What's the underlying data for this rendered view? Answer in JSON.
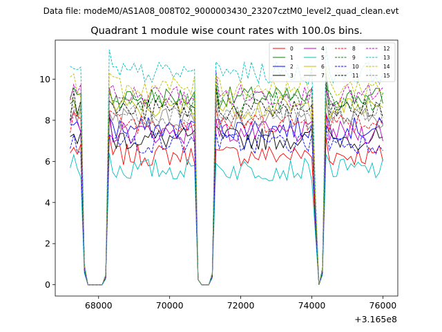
{
  "chart_data": {
    "type": "line",
    "suptitle": "Data file: modeM0/AS1A08_008T02_9000003430_23207cztM0_level2_quad_clean.evt",
    "title": "Quadrant 1 module wise count rates with 100.0s bins.",
    "xlabel": "",
    "ylabel": "",
    "x_offset_label": "+3.165e8",
    "xlim": [
      66780,
      76420
    ],
    "ylim": [
      -0.55,
      11.9
    ],
    "x_ticks": [
      68000,
      70000,
      72000,
      74000,
      76000
    ],
    "x_tick_labels": [
      "68000",
      "70000",
      "72000",
      "74000",
      "76000"
    ],
    "y_ticks": [
      0,
      2,
      4,
      6,
      8,
      10
    ],
    "y_tick_labels": [
      "0",
      "2",
      "4",
      "6",
      "8",
      "10"
    ],
    "x_start": 67200,
    "x_step": 100,
    "gap_value": 0.0,
    "segment_boundaries": [
      [
        67200,
        67500
      ],
      [
        68300,
        70700
      ],
      [
        71300,
        74000
      ],
      [
        74400,
        76000
      ]
    ],
    "ramp_points": {
      "67600": 0.6,
      "68100": 0.0,
      "68200": 0.3,
      "70800": 0.3,
      "71100": 0.0,
      "71200": 0.35,
      "74100": 0.4,
      "74200": 0.0,
      "74300": 0.5
    },
    "legend": {
      "location": "upper right",
      "columns": 4
    },
    "series": [
      {
        "name": "0",
        "color": "#ff0000",
        "style": "solid",
        "level": 6.3
      },
      {
        "name": "1",
        "color": "#008000",
        "style": "solid",
        "level": 9.1
      },
      {
        "name": "2",
        "color": "#0000ff",
        "style": "solid",
        "level": 7.6
      },
      {
        "name": "3",
        "color": "#000000",
        "style": "solid",
        "level": 7.1
      },
      {
        "name": "4",
        "color": "#bf00bf",
        "style": "solid",
        "level": 7.4
      },
      {
        "name": "5",
        "color": "#00bfbf",
        "style": "solid",
        "level": 5.6
      },
      {
        "name": "6",
        "color": "#bfbf00",
        "style": "solid",
        "level": 8.6
      },
      {
        "name": "7",
        "color": "#808080",
        "style": "solid",
        "level": 8.1
      },
      {
        "name": "8",
        "color": "#ff0000",
        "style": "dashed",
        "level": 7.9
      },
      {
        "name": "9",
        "color": "#008000",
        "style": "dashed",
        "level": 8.9
      },
      {
        "name": "10",
        "color": "#0000ff",
        "style": "dashed",
        "level": 6.9
      },
      {
        "name": "11",
        "color": "#000000",
        "style": "dashed",
        "level": 8.5
      },
      {
        "name": "12",
        "color": "#bf00bf",
        "style": "dashed",
        "level": 9.2
      },
      {
        "name": "13",
        "color": "#00bfbf",
        "style": "dashed",
        "level": 10.3
      },
      {
        "name": "14",
        "color": "#bfbf00",
        "style": "dashed",
        "level": 9.6
      },
      {
        "name": "15",
        "color": "#808080",
        "style": "dashed",
        "level": 8.3
      }
    ]
  }
}
